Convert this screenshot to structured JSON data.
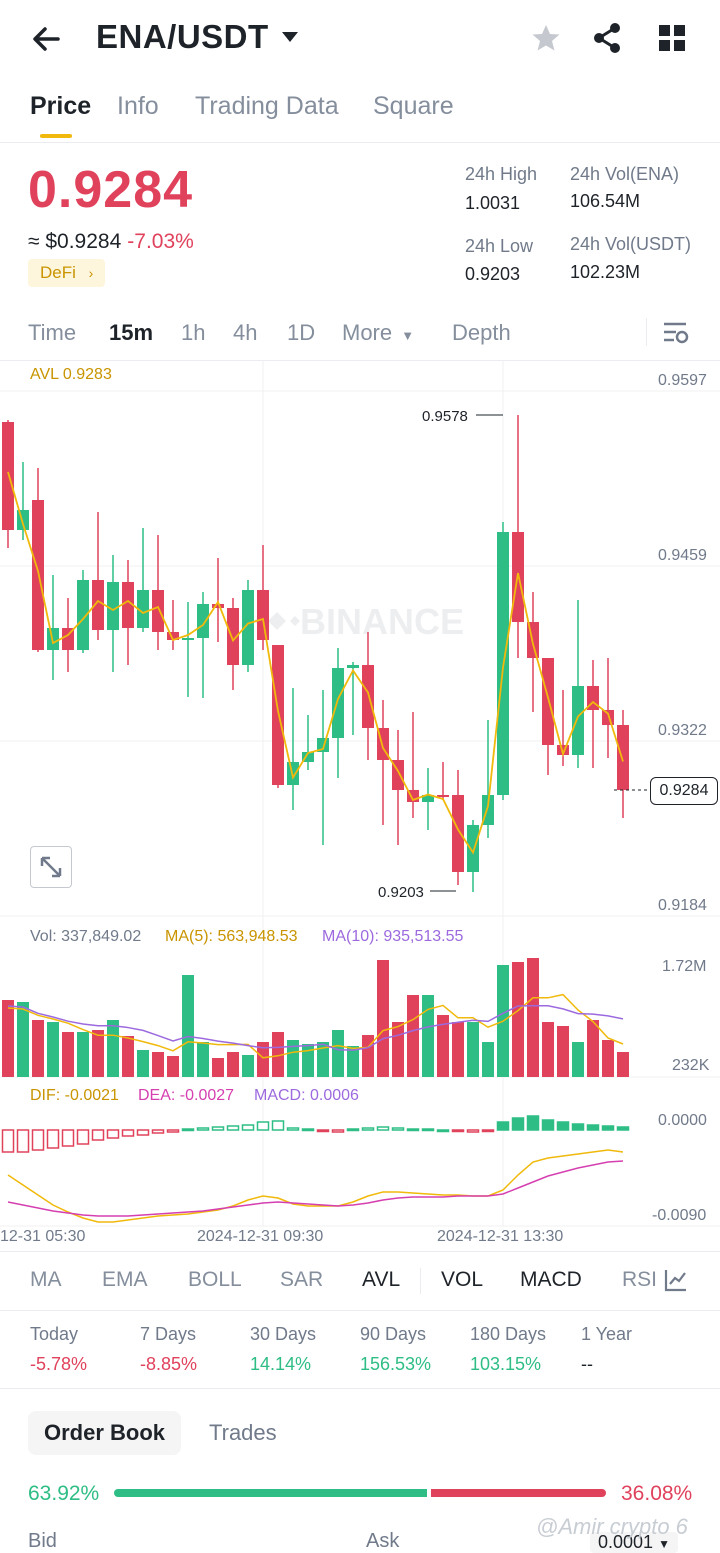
{
  "header": {
    "pair": "ENA/USDT"
  },
  "tabs": [
    "Price",
    "Info",
    "Trading Data",
    "Square"
  ],
  "price": {
    "last": "0.9284",
    "approx": "≈ $0.9284",
    "change": "-7.03%",
    "tag": "DeFi"
  },
  "stats": {
    "high_label": "24h High",
    "high_value": "1.0031",
    "low_label": "24h Low",
    "low_value": "0.9203",
    "vol_ena_label": "24h Vol(ENA)",
    "vol_ena_value": "106.54M",
    "vol_usdt_label": "24h Vol(USDT)",
    "vol_usdt_value": "102.23M"
  },
  "timeframes": [
    "Time",
    "15m",
    "1h",
    "4h",
    "1D",
    "More",
    "Depth"
  ],
  "chart": {
    "avl_label": "AVL 0.9283",
    "price_axis": [
      "0.9597",
      "0.9459",
      "0.9322",
      "0.9184"
    ],
    "high_marker": "0.9578",
    "low_marker": "0.9203",
    "current_tag": "0.9284",
    "watermark": "BINANCE",
    "vol_label": "Vol: 337,849.02",
    "ma5_label": "MA(5): 563,948.53",
    "ma10_label": "MA(10): 935,513.55",
    "vol_axis_top": "1.72M",
    "vol_axis_bottom": "232K",
    "dif_label": "DIF: -0.0021",
    "dea_label": "DEA: -0.0027",
    "macd_label": "MACD: 0.0006",
    "macd_axis_top": "0.0000",
    "macd_axis_bottom": "-0.0090",
    "time_axis": [
      "12-31 05:30",
      "2024-12-31 09:30",
      "2024-12-31 13:30"
    ],
    "colors": {
      "up": "#2ebd85",
      "down": "#e0425c",
      "avl": "#f0b90b",
      "ma10": "#9c6ade",
      "dea": "#d53fb0"
    }
  },
  "indicators": [
    "MA",
    "EMA",
    "BOLL",
    "SAR",
    "AVL",
    "VOL",
    "MACD",
    "RSI"
  ],
  "performance": [
    {
      "label": "Today",
      "value": "-5.78%",
      "dir": "down"
    },
    {
      "label": "7 Days",
      "value": "-8.85%",
      "dir": "down"
    },
    {
      "label": "30 Days",
      "value": "14.14%",
      "dir": "up"
    },
    {
      "label": "90 Days",
      "value": "156.53%",
      "dir": "up"
    },
    {
      "label": "180 Days",
      "value": "103.15%",
      "dir": "up"
    },
    {
      "label": "1 Year",
      "value": "--",
      "dir": "flat"
    }
  ],
  "orderbook": {
    "tab_active": "Order Book",
    "tab_other": "Trades",
    "bid_pct": "63.92%",
    "ask_pct": "36.08%",
    "bid_label": "Bid",
    "ask_label": "Ask",
    "precision": "0.0001"
  },
  "watermark_user": "@Amir crypto 6"
}
